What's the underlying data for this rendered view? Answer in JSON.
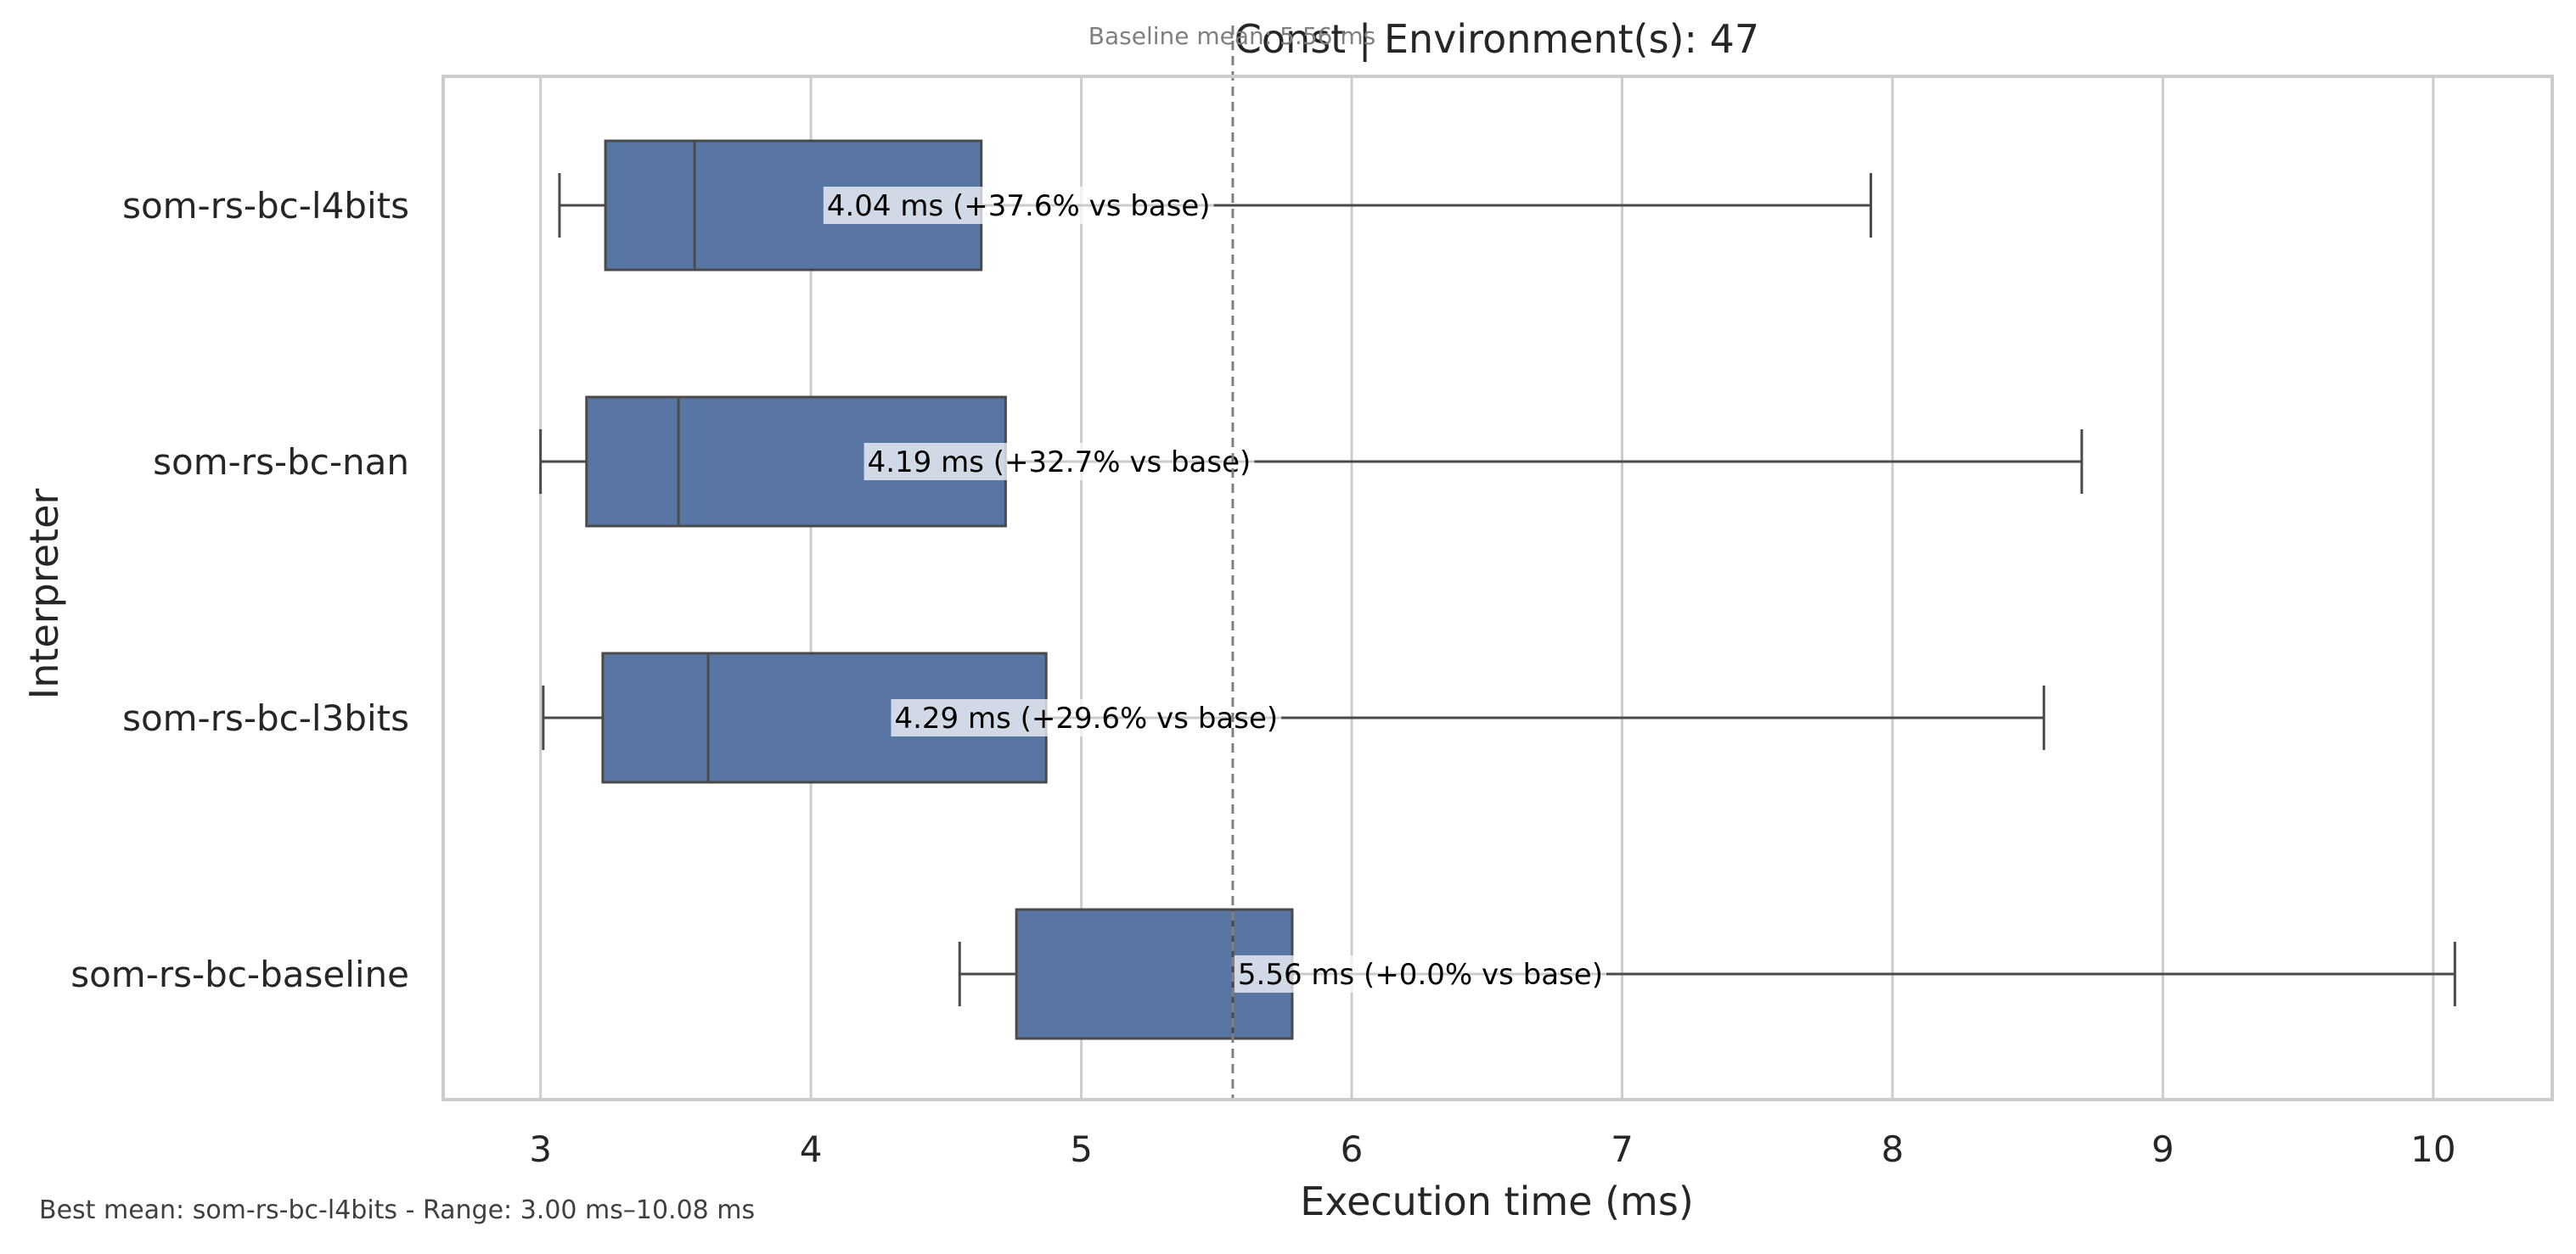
{
  "chart_data": {
    "type": "boxplot",
    "orientation": "horizontal",
    "title": "Const | Environment(s): 47",
    "baseline_note": "Baseline mean: 5.56 ms",
    "xlabel": "Execution time (ms)",
    "ylabel": "Interpreter",
    "xlim": [
      2.64,
      10.44
    ],
    "xticks": [
      3,
      4,
      5,
      6,
      7,
      8,
      9,
      10
    ],
    "grid": "vertical",
    "box_color": "#5975a4",
    "edge_color": "#4a4a4a",
    "baseline_line_color": "#808080",
    "baseline_value": 5.56,
    "footer": "Best mean: som-rs-bc-l4bits - Range: 3.00 ms–10.08 ms",
    "series": [
      {
        "name": "som-rs-bc-l4bits",
        "whisker_low": 3.07,
        "q1": 3.24,
        "median": 3.57,
        "q3": 4.63,
        "whisker_high": 7.92,
        "mean": 4.04,
        "label": "4.04 ms  (+37.6% vs base)"
      },
      {
        "name": "som-rs-bc-nan",
        "whisker_low": 3.0,
        "q1": 3.17,
        "median": 3.51,
        "q3": 4.72,
        "whisker_high": 8.7,
        "mean": 4.19,
        "label": "4.19 ms  (+32.7% vs base)"
      },
      {
        "name": "som-rs-bc-l3bits",
        "whisker_low": 3.01,
        "q1": 3.23,
        "median": 3.62,
        "q3": 4.87,
        "whisker_high": 8.56,
        "mean": 4.29,
        "label": "4.29 ms  (+29.6% vs base)"
      },
      {
        "name": "som-rs-bc-baseline",
        "whisker_low": 4.55,
        "q1": 4.76,
        "median": 5.56,
        "q3": 5.78,
        "whisker_high": 10.08,
        "mean": 5.56,
        "label": "5.56 ms  (+0.0% vs base)"
      }
    ]
  }
}
